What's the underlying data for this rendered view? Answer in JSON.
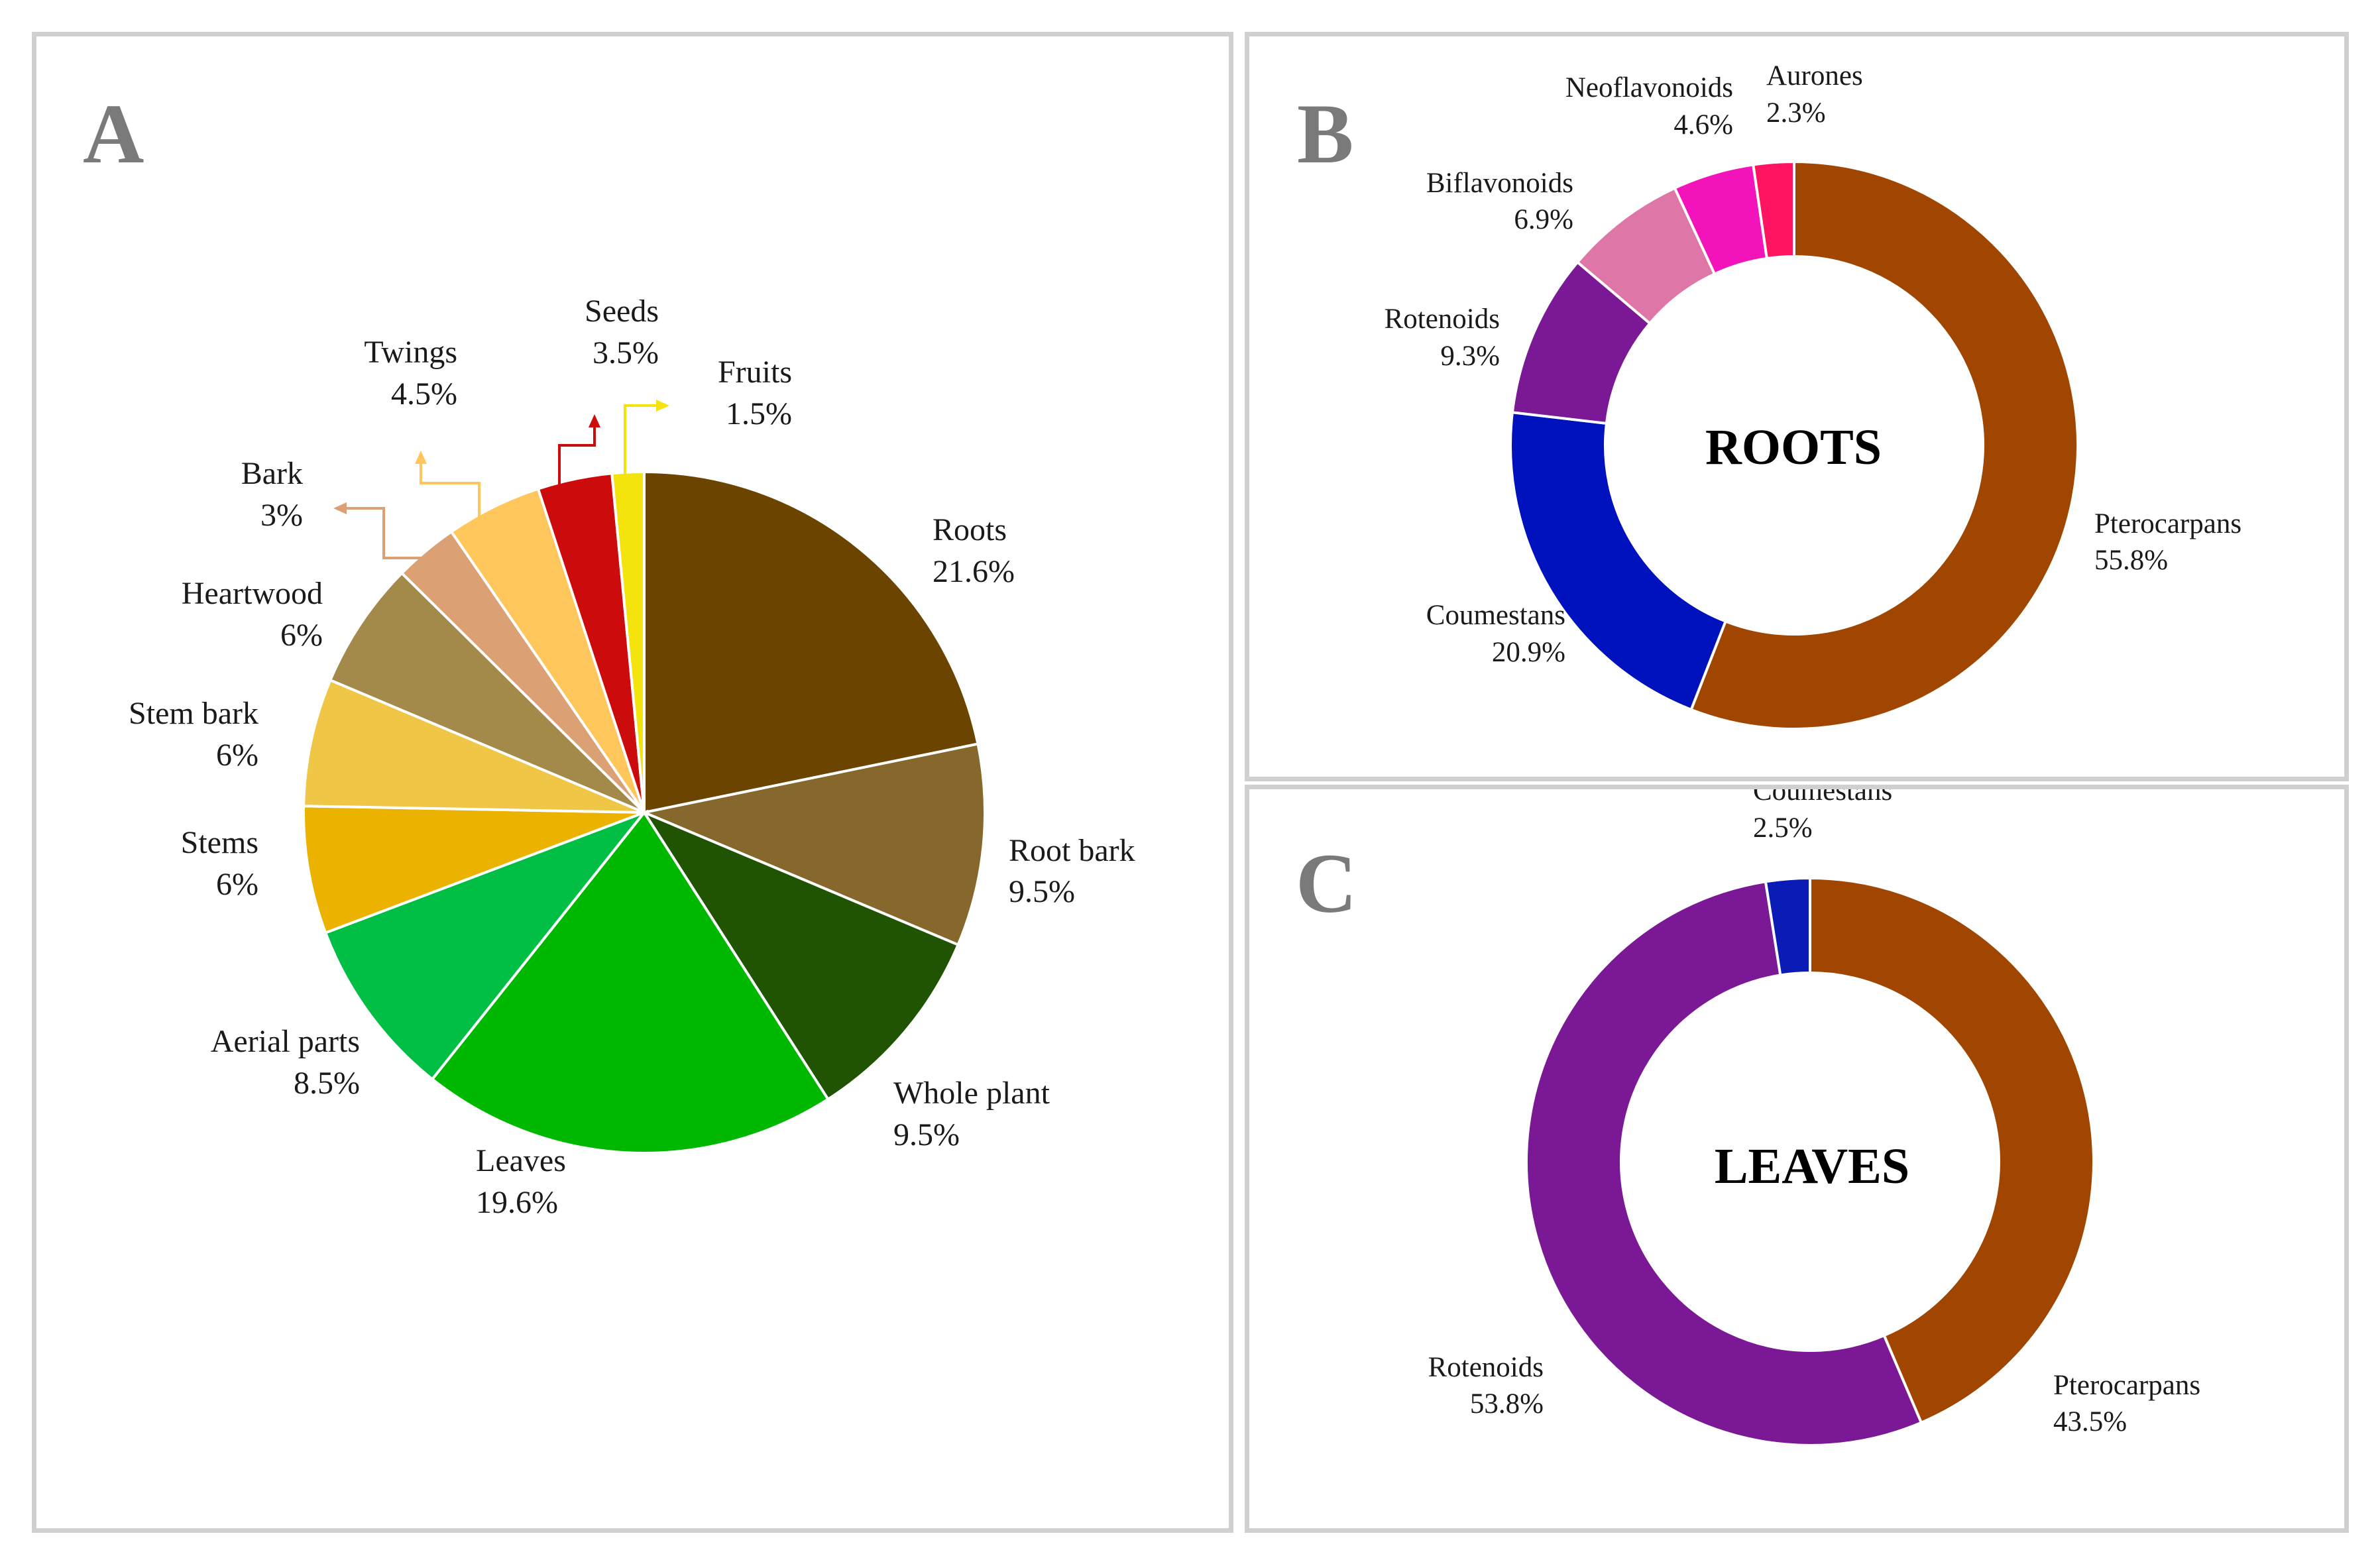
{
  "chart_data": [
    {
      "panel": "A",
      "type": "pie",
      "title": "",
      "slices": [
        {
          "label": "Roots",
          "value_label": "21.6%",
          "value": 21.6,
          "color": "#6b4400"
        },
        {
          "label": "Root bark",
          "value_label": "9.5%",
          "value": 9.5,
          "color": "#86672c"
        },
        {
          "label": "Whole plant",
          "value_label": "9.5%",
          "value": 9.5,
          "color": "#215402"
        },
        {
          "label": "Leaves",
          "value_label": "19.6%",
          "value": 19.6,
          "color": "#00b800"
        },
        {
          "label": "Aerial parts",
          "value_label": "8.5%",
          "value": 8.5,
          "color": "#00bf44"
        },
        {
          "label": "Stems",
          "value_label": "6%",
          "value": 6,
          "color": "#ebb300"
        },
        {
          "label": "Stem bark",
          "value_label": "6%",
          "value": 6,
          "color": "#f0c646"
        },
        {
          "label": "Heartwood",
          "value_label": "6%",
          "value": 6,
          "color": "#a38a4a"
        },
        {
          "label": "Bark",
          "value_label": "3%",
          "value": 3,
          "color": "#dba074"
        },
        {
          "label": "Twings",
          "value_label": "4.5%",
          "value": 4.5,
          "color": "#fec65b"
        },
        {
          "label": "Seeds",
          "value_label": "3.5%",
          "value": 3.5,
          "color": "#cc0c0c"
        },
        {
          "label": "Fruits",
          "value_label": "1.5%",
          "value": 1.5,
          "color": "#f4e40e"
        }
      ]
    },
    {
      "panel": "B",
      "type": "pie",
      "subtype": "donut",
      "center_label": "ROOTS",
      "center_color": "#6b3000",
      "slices": [
        {
          "label": "Pterocarpans",
          "value_label": "55.8%",
          "value": 55.8,
          "color": "#a04600"
        },
        {
          "label": "Coumestans",
          "value_label": "20.9%",
          "value": 20.9,
          "color": "#0012bd"
        },
        {
          "label": "Rotenoids",
          "value_label": "9.3%",
          "value": 9.3,
          "color": "#7a1896"
        },
        {
          "label": "Biflavonoids",
          "value_label": "6.9%",
          "value": 6.9,
          "color": "#de76a8"
        },
        {
          "label": "Neoflavonoids",
          "value_label": "4.6%",
          "value": 4.6,
          "color": "#f213bb"
        },
        {
          "label": "Aurones",
          "value_label": "2.3%",
          "value": 2.3,
          "color": "#ff1462"
        }
      ]
    },
    {
      "panel": "C",
      "type": "pie",
      "subtype": "donut",
      "center_label": "LEAVES",
      "center_color": "#1d4a12",
      "slices": [
        {
          "label": "Pterocarpans",
          "value_label": "43.5%",
          "value": 43.5,
          "color": "#a04600"
        },
        {
          "label": "Rotenoids",
          "value_label": "53.8%",
          "value": 53.8,
          "color": "#7a1896"
        },
        {
          "label": "Coumestans",
          "value_label": "2.5%",
          "value": 2.5,
          "color": "#0a1cb5"
        }
      ]
    }
  ]
}
